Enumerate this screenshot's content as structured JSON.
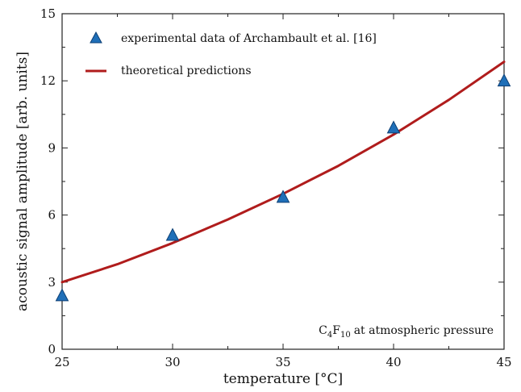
{
  "chart_data": {
    "type": "scatter",
    "xlabel": "temperature [°C]",
    "ylabel": "acoustic signal amplitude [arb. units]",
    "xlim": [
      25,
      45
    ],
    "ylim": [
      0,
      15
    ],
    "x_ticks": [
      "25",
      "30",
      "35",
      "40",
      "45"
    ],
    "y_ticks": [
      "0",
      "3",
      "6",
      "9",
      "12",
      "15"
    ],
    "grid": false,
    "legend_position": "top-left",
    "series": [
      {
        "name": "experimental data of Archambault et al. [16]",
        "kind": "scatter",
        "marker": "triangle",
        "color": "#1f6fb8",
        "x": [
          25,
          30,
          35,
          40,
          45
        ],
        "y": [
          2.4,
          5.1,
          6.8,
          9.9,
          12.0
        ]
      },
      {
        "name": "theoretical predictions",
        "kind": "line",
        "color": "#b01c1c",
        "x": [
          25,
          27.5,
          30,
          32.5,
          35,
          37.5,
          40,
          42.5,
          45
        ],
        "y": [
          3.0,
          3.8,
          4.75,
          5.8,
          6.95,
          8.2,
          9.6,
          11.15,
          12.85
        ]
      }
    ],
    "annotation": {
      "formula": {
        "a": "C",
        "a_sub": "4",
        "b": "F",
        "b_sub": "10"
      },
      "text": "at atmospheric pressure"
    }
  }
}
